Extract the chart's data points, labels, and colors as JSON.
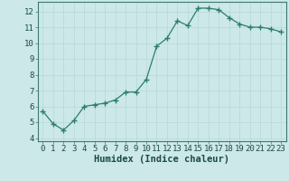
{
  "x": [
    0,
    1,
    2,
    3,
    4,
    5,
    6,
    7,
    8,
    9,
    10,
    11,
    12,
    13,
    14,
    15,
    16,
    17,
    18,
    19,
    20,
    21,
    22,
    23
  ],
  "y": [
    5.7,
    4.9,
    4.5,
    5.1,
    6.0,
    6.1,
    6.2,
    6.4,
    6.9,
    6.9,
    7.7,
    9.8,
    10.3,
    11.4,
    11.1,
    12.2,
    12.2,
    12.1,
    11.6,
    11.2,
    11.0,
    11.0,
    10.9,
    10.7
  ],
  "line_color": "#2e7d6e",
  "marker": "+",
  "marker_size": 4,
  "bg_color": "#cce8e8",
  "grid_color": "#b8d8d8",
  "xlabel": "Humidex (Indice chaleur)",
  "xlim": [
    -0.5,
    23.5
  ],
  "ylim": [
    3.8,
    12.6
  ],
  "yticks": [
    4,
    5,
    6,
    7,
    8,
    9,
    10,
    11,
    12
  ],
  "xticks": [
    0,
    1,
    2,
    3,
    4,
    5,
    6,
    7,
    8,
    9,
    10,
    11,
    12,
    13,
    14,
    15,
    16,
    17,
    18,
    19,
    20,
    21,
    22,
    23
  ],
  "xlabel_fontsize": 7.5,
  "tick_fontsize": 6.5,
  "spine_color": "#3d7a6e"
}
